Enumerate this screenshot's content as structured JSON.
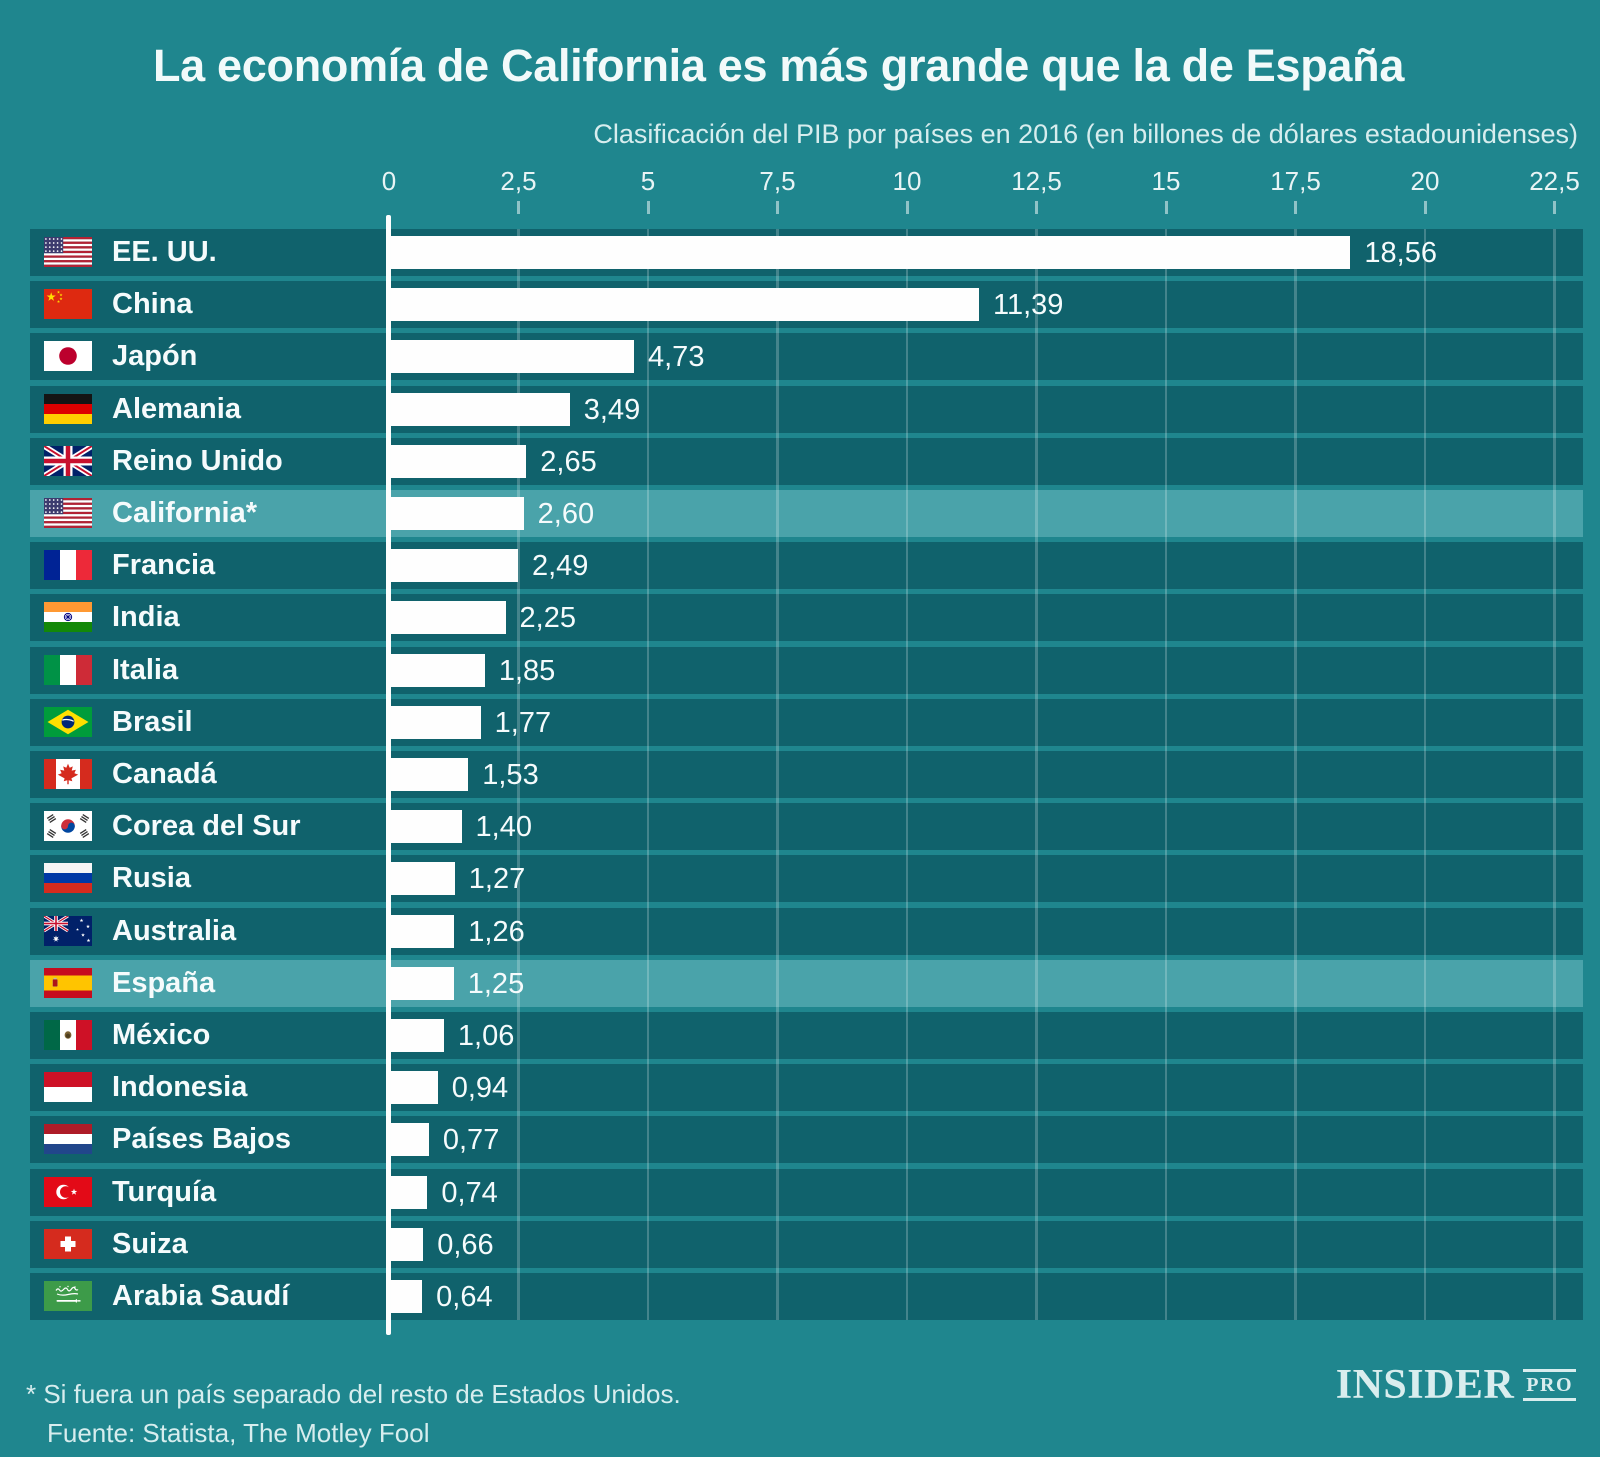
{
  "title": "La economía de California es más grande que la de España",
  "chart_data": {
    "type": "bar",
    "title": "La economía de California es más grande que la de España",
    "subtitle": "Clasificación del PIB por países en 2016 (en billones de dólares estadounidenses)",
    "orientation": "horizontal",
    "grid": true,
    "xlim": [
      0,
      23
    ],
    "tick_values": [
      0,
      2.5,
      5,
      7.5,
      10,
      12.5,
      15,
      17.5,
      20,
      22.5
    ],
    "tick_labels": [
      "0",
      "2,5",
      "5",
      "7,5",
      "10",
      "12,5",
      "15",
      "17,5",
      "20",
      "22,5"
    ],
    "categories": [
      "EE. UU.",
      "China",
      "Japón",
      "Alemania",
      "Reino Unido",
      "California*",
      "Francia",
      "India",
      "Italia",
      "Brasil",
      "Canadá",
      "Corea del Sur",
      "Rusia",
      "Australia",
      "España",
      "México",
      "Indonesia",
      "Países Bajos",
      "Turquía",
      "Suiza",
      "Arabia Saudí"
    ],
    "values": [
      18.56,
      11.39,
      4.73,
      3.49,
      2.65,
      2.6,
      2.49,
      2.25,
      1.85,
      1.77,
      1.53,
      1.4,
      1.27,
      1.26,
      1.25,
      1.06,
      0.94,
      0.77,
      0.74,
      0.66,
      0.64
    ],
    "value_labels": [
      "18,56",
      "11,39",
      "4,73",
      "3,49",
      "2,65",
      "2,60",
      "2,49",
      "2,25",
      "1,85",
      "1,77",
      "1,53",
      "1,40",
      "1,27",
      "1,26",
      "1,25",
      "1,06",
      "0,94",
      "0,77",
      "0,74",
      "0,66",
      "0,64"
    ],
    "flags": [
      "us",
      "cn",
      "jp",
      "de",
      "gb",
      "us",
      "fr",
      "in",
      "it",
      "br",
      "ca",
      "kr",
      "ru",
      "au",
      "es",
      "mx",
      "id",
      "nl",
      "tr",
      "ch",
      "sa"
    ],
    "highlighted_rows": [
      5,
      14
    ]
  },
  "footer": {
    "footnote": "* Si fuera un país separado del resto de Estados Unidos.",
    "source": "Fuente: Statista, The Motley Fool"
  },
  "logo": {
    "main": "INSIDER",
    "pro": "PRO"
  },
  "colors": {
    "background": "#1f868e",
    "row_strip": "#10626c",
    "row_highlight": "#4aa3aa",
    "bar": "#fefefe",
    "baseline": "#fdfefe",
    "gridline": "rgba(255,255,255,0.22)",
    "tick": "rgba(255,255,255,0.5)",
    "title_text": "#f2fafa",
    "subtitle_text": "#d7edee",
    "label_text": "#f5fbfc",
    "footer_text": "#d7edee",
    "logo_text": "#d9edee"
  }
}
